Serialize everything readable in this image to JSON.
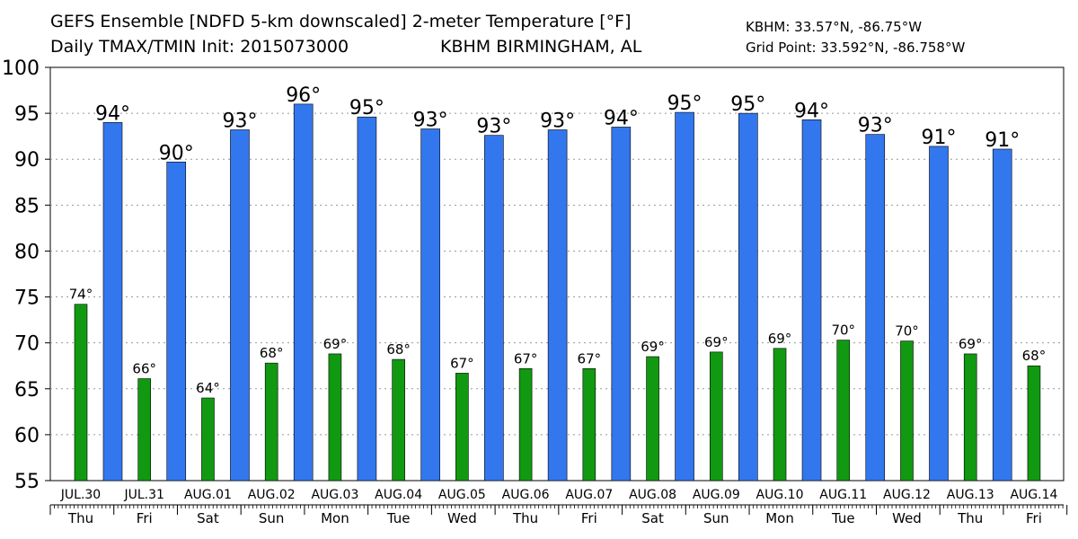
{
  "header": {
    "title_line1": "GEFS Ensemble [NDFD 5-km downscaled] 2-meter Temperature [°F]",
    "title_line2": "Daily TMAX/TMIN Init: 2015073000",
    "location": "KBHM BIRMINGHAM, AL",
    "coords_line1": "KBHM: 33.57°N, -86.75°W",
    "coords_line2": "Grid Point: 33.592°N, -86.758°W"
  },
  "chart_data": {
    "type": "bar",
    "title": "GEFS Ensemble [NDFD 5-km downscaled] 2-meter Temperature [°F]",
    "ylim": [
      55,
      100
    ],
    "yticks": [
      55,
      60,
      65,
      70,
      75,
      80,
      85,
      90,
      95,
      100
    ],
    "grid": true,
    "colors": {
      "tmax": "#3377ee",
      "tmin": "#119911",
      "grid": "#999999"
    },
    "dates": [
      "JUL.30",
      "JUL.31",
      "AUG.01",
      "AUG.02",
      "AUG.03",
      "AUG.04",
      "AUG.05",
      "AUG.06",
      "AUG.07",
      "AUG.08",
      "AUG.09",
      "AUG.10",
      "AUG.11",
      "AUG.12",
      "AUG.13",
      "AUG.14"
    ],
    "weekdays": [
      "Thu",
      "Fri",
      "Sat",
      "Sun",
      "Mon",
      "Tue",
      "Wed",
      "Thu",
      "Fri",
      "Sat",
      "Sun",
      "Mon",
      "Tue",
      "Wed",
      "Thu",
      "Fri"
    ],
    "tmin": [
      {
        "value": 74.2,
        "label": "74°"
      },
      {
        "value": 66.1,
        "label": "66°"
      },
      {
        "value": 64.0,
        "label": "64°"
      },
      {
        "value": 67.8,
        "label": "68°"
      },
      {
        "value": 68.8,
        "label": "69°"
      },
      {
        "value": 68.2,
        "label": "68°"
      },
      {
        "value": 66.7,
        "label": "67°"
      },
      {
        "value": 67.2,
        "label": "67°"
      },
      {
        "value": 67.2,
        "label": "67°"
      },
      {
        "value": 68.5,
        "label": "69°"
      },
      {
        "value": 69.0,
        "label": "69°"
      },
      {
        "value": 69.4,
        "label": "69°"
      },
      {
        "value": 70.3,
        "label": "70°"
      },
      {
        "value": 70.2,
        "label": "70°"
      },
      {
        "value": 68.8,
        "label": "69°"
      },
      {
        "value": 67.5,
        "label": "68°"
      }
    ],
    "tmax": [
      {
        "value": 94.0,
        "label": "94°"
      },
      {
        "value": 89.7,
        "label": "90°"
      },
      {
        "value": 93.2,
        "label": "93°"
      },
      {
        "value": 96.0,
        "label": "96°"
      },
      {
        "value": 94.6,
        "label": "95°"
      },
      {
        "value": 93.3,
        "label": "93°"
      },
      {
        "value": 92.6,
        "label": "93°"
      },
      {
        "value": 93.2,
        "label": "93°"
      },
      {
        "value": 93.5,
        "label": "94°"
      },
      {
        "value": 95.1,
        "label": "95°"
      },
      {
        "value": 95.0,
        "label": "95°"
      },
      {
        "value": 94.3,
        "label": "94°"
      },
      {
        "value": 92.7,
        "label": "93°"
      },
      {
        "value": 91.4,
        "label": "91°"
      },
      {
        "value": 91.1,
        "label": "91°"
      }
    ]
  }
}
